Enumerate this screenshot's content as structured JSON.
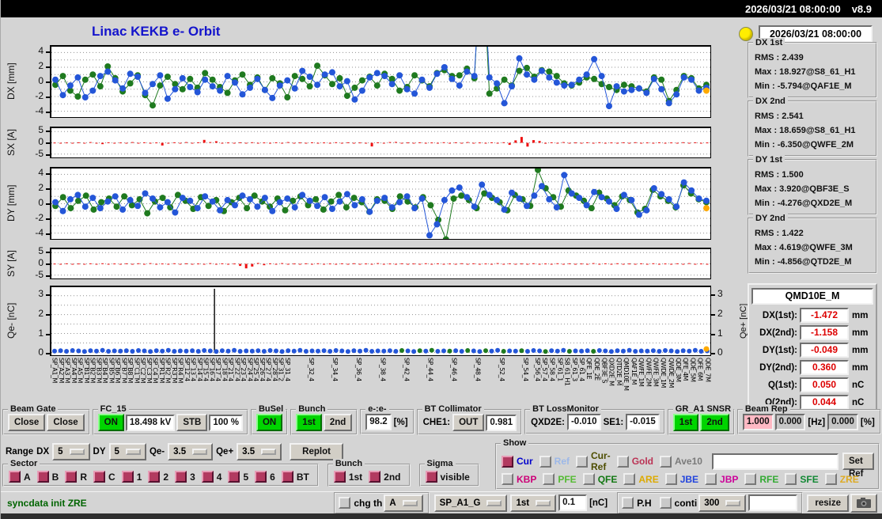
{
  "topbar": {
    "clock": "2026/03/21 08:00:00",
    "version": "v8.9"
  },
  "title": "Linac KEKB e- Orbit",
  "status_clock": "2026/03/21 08:00:00",
  "colors": {
    "accent_blue": "#1414cc",
    "series_blue": "#2456d8",
    "series_green": "#1f7a1f",
    "bars_red": "#ee1111",
    "value_red": "#dd0000",
    "green_button": "#00d400",
    "pink_field": "#ffb9c4",
    "checkbox_maroon": "#b23a60",
    "led_yellow": "#ffee00"
  },
  "stats": [
    {
      "title": "DX 1st",
      "lines": [
        "RMS :  2.439",
        "Max :  18.927@S8_61_H1",
        "Min :  -5.794@QAF1E_M"
      ]
    },
    {
      "title": "DX 2nd",
      "lines": [
        "RMS :  2.541",
        "Max :  18.659@S8_61_H1",
        "Min :  -6.350@QWFE_2M"
      ]
    },
    {
      "title": "DY 1st",
      "lines": [
        "RMS :  1.500",
        "Max :  3.920@QBF3E_S",
        "Min :  -4.276@QXD2E_M"
      ]
    },
    {
      "title": "DY 2nd",
      "lines": [
        "RMS :  1.422",
        "Max :  4.619@QWFE_3M",
        "Min :  -4.856@QTD2E_M"
      ]
    }
  ],
  "monitor": {
    "name": "QMD10E_M",
    "rows": [
      {
        "label": "DX(1st):",
        "value": "-1.472",
        "unit": "mm"
      },
      {
        "label": "DX(2nd):",
        "value": "-1.158",
        "unit": "mm"
      },
      {
        "label": "DY(1st):",
        "value": "-0.049",
        "unit": "mm"
      },
      {
        "label": "DY(2nd):",
        "value": "0.360",
        "unit": "mm"
      },
      {
        "label": "Q(1st):",
        "value": "0.050",
        "unit": "nC"
      },
      {
        "label": "Q(2nd):",
        "value": "0.044",
        "unit": "nC"
      }
    ]
  },
  "beam_gate": {
    "title": "Beam Gate",
    "btn1": "Close",
    "btn2": "Close"
  },
  "fc15": {
    "title": "FC_15",
    "on": "ON",
    "kv": "18.498 kV",
    "stb": "STB",
    "pct": "100 %"
  },
  "busel": {
    "title": "BuSel",
    "on": "ON"
  },
  "bunch": {
    "title": "Bunch",
    "b1": "1st",
    "b2": "2nd"
  },
  "ee": {
    "title": "e-:e-",
    "value": "98.2",
    "unit": "[%]"
  },
  "bt_collimator": {
    "title": "BT Collimator",
    "label": "CHE1:",
    "state": "OUT",
    "value": "0.981"
  },
  "bt_loss": {
    "title": "BT LossMonitor",
    "l1": "QXD2E:",
    "v1": "-0.010",
    "l2": "SE1:",
    "v2": "-0.015"
  },
  "gr_snsr": {
    "title": "GR_A1 SNSR",
    "b1": "1st",
    "b2": "2nd"
  },
  "beam_rep": {
    "title": "Beam Rep",
    "v1": "1.000",
    "v2": "0.000",
    "u1": "[Hz]",
    "v3": "0.000",
    "u2": "[%]"
  },
  "range": {
    "label": "Range",
    "l1": "DX",
    "v1": "5",
    "l2": "DY",
    "v2": "5",
    "l3": "Qe-",
    "v3": "3.5",
    "l4": "Qe+",
    "v4": "3.5",
    "replot": "Replot"
  },
  "sector": {
    "title": "Sector",
    "items": [
      "A",
      "B",
      "R",
      "C",
      "1",
      "2",
      "3",
      "4",
      "5",
      "6",
      "BT"
    ]
  },
  "bunch2": {
    "title": "Bunch",
    "items": [
      "1st",
      "2nd"
    ]
  },
  "sigma": {
    "title": "Sigma",
    "items": [
      "visible"
    ]
  },
  "show": {
    "title": "Show",
    "row1": [
      {
        "label": "Cur",
        "color": "#0000cc",
        "checked": true
      },
      {
        "label": "Ref",
        "color": "#9db8e8",
        "checked": false
      },
      {
        "label": "Cur-Ref",
        "color": "#4d4d00",
        "checked": false
      },
      {
        "label": "Gold",
        "color": "#bb3355",
        "checked": false
      },
      {
        "label": "Ave10",
        "color": "#7a7a7a",
        "checked": false
      }
    ],
    "set_ref": "Set Ref",
    "row2": [
      {
        "label": "KBP",
        "color": "#cc0077",
        "checked": false
      },
      {
        "label": "PFE",
        "color": "#55bb33",
        "checked": false
      },
      {
        "label": "QFE",
        "color": "#117711",
        "checked": false
      },
      {
        "label": "ARE",
        "color": "#ddaa00",
        "checked": false
      },
      {
        "label": "JBE",
        "color": "#2244dd",
        "checked": false
      },
      {
        "label": "JBP",
        "color": "#cc0099",
        "checked": false
      },
      {
        "label": "RFE",
        "color": "#33aa33",
        "checked": false
      },
      {
        "label": "SFE",
        "color": "#118833",
        "checked": false
      },
      {
        "label": "ZRE",
        "color": "#ddaa22",
        "checked": false
      }
    ]
  },
  "statusbar": {
    "message": "syncdata init ZRE",
    "chg_th": "chg th",
    "dd1": "A",
    "dd2": "SP_A1_G",
    "dd3": "1st",
    "input": "0.1",
    "unit": "[nC]",
    "ph": "P.H",
    "conti": "conti",
    "dd4": "300",
    "resize": "resize"
  },
  "chart_data": {
    "dx": {
      "type": "scatter",
      "label": "DX [mm]",
      "ylim": [
        -4.8,
        4.8
      ],
      "ticks": [
        4,
        2,
        0,
        -2,
        -4
      ],
      "grid": [
        -4,
        -3,
        -2,
        -1,
        0,
        1,
        2,
        3,
        4
      ],
      "end": -1.2,
      "blue": [
        0.3,
        -1.8,
        -0.5,
        0.6,
        -2.1,
        -1.2,
        0.8,
        1.4,
        0.2,
        -0.9,
        1.1,
        0.7,
        -1.5,
        -0.3,
        0.9,
        -2.3,
        -1.0,
        0.5,
        -0.7,
        -1.4,
        0.3,
        -0.6,
        -1.2,
        0.8,
        -0.1,
        -1.7,
        -0.8,
        0.4,
        -1.1,
        -2.2,
        -0.5,
        0.2,
        -0.9,
        1.5,
        0.7,
        -0.4,
        1.0,
        1.3,
        -0.6,
        0.1,
        -2.4,
        -1.2,
        0.6,
        1.2,
        0.8,
        -0.3,
        0.9,
        -1.0,
        -1.6,
        0.3,
        -0.8,
        1.1,
        2.0,
        0.4,
        -0.5,
        1.4,
        0.8,
        18.9,
        0.6,
        -0.2,
        -2.9,
        -0.6,
        3.2,
        1.0,
        0.3,
        1.5,
        0.6,
        -0.1,
        -0.5,
        -0.4,
        0.3,
        1.0,
        3.1,
        0.8,
        -3.3,
        -0.6,
        -1.3,
        -1.1,
        -0.9,
        -1.5,
        0.4,
        -1.0,
        -2.9,
        -1.7,
        0.6,
        0.3,
        -1.2,
        -0.8
      ],
      "green": [
        -0.4,
        0.8,
        -1.2,
        -2.0,
        0.3,
        1.0,
        -0.6,
        2.1,
        0.5,
        -1.3,
        -0.2,
        0.9,
        -1.8,
        -3.2,
        -0.5,
        0.7,
        -0.3,
        -1.0,
        0.4,
        -0.8,
        1.2,
        0.3,
        -0.7,
        -1.5,
        0.2,
        1.0,
        -0.4,
        0.6,
        -1.1,
        0.5,
        -0.2,
        -2.1,
        0.8,
        0.4,
        -0.6,
        2.2,
        0.9,
        -0.3,
        0.5,
        -1.9,
        -0.8,
        0.2,
        0.7,
        -0.5,
        1.1,
        0.4,
        -1.2,
        -0.7,
        0.9,
        0.2,
        -0.6,
        1.2,
        1.6,
        0.8,
        0.9,
        1.8,
        0.5,
        18.66,
        -1.6,
        -0.9,
        0.3,
        -0.5,
        1.5,
        1.9,
        0.7,
        1.6,
        1.4,
        0.8,
        -0.2,
        -0.5,
        -0.1,
        0.6,
        0.4,
        -0.3,
        -0.7,
        -1.1,
        -0.4,
        -0.6,
        -0.9,
        -1.3,
        0.6,
        0.3,
        -2.6,
        -1.1,
        0.8,
        0.5,
        -0.9,
        -0.4
      ]
    },
    "sx": {
      "type": "bars",
      "label": "SX [A]",
      "ylim": [
        -6.5,
        6.5
      ],
      "ticks": [
        5,
        0,
        -5
      ],
      "grid": [
        -5,
        0,
        5
      ],
      "bars": [
        0.1,
        -0.2,
        0.15,
        -0.3,
        0.2,
        -0.15,
        0.3,
        -0.2,
        -0.6,
        0.2,
        -0.25,
        0.15,
        -0.2,
        0.3,
        -0.15,
        0.2,
        -0.3,
        0.15,
        -1.2,
        -0.3,
        0.2,
        -0.2,
        0.3,
        -0.15,
        0.2,
        1.3,
        0.3,
        0.7,
        -0.2,
        0.15,
        -0.3,
        0.2,
        -0.15,
        0.25,
        -0.2,
        0.15,
        -0.25,
        0.2,
        -0.15,
        0.3,
        -0.2,
        0.15,
        -0.3,
        0.2,
        -0.25,
        0.15,
        -0.2,
        0.25,
        -0.15,
        0.2,
        -0.3,
        0.15,
        -0.2,
        -1.6,
        0.2,
        -0.15,
        0.3,
        0.4,
        -0.2,
        0.15,
        -0.25,
        0.2,
        -0.3,
        0.15,
        -0.2,
        0.25,
        -0.15,
        0.2,
        -0.25,
        0.3,
        -0.2,
        0.15,
        -0.3,
        0.2,
        -0.15,
        0.25,
        -0.9,
        1.1,
        2.6,
        -1.7,
        1.2,
        0.8,
        -0.4,
        0.2,
        -0.15,
        0.3,
        -0.2,
        0.15,
        -0.25,
        0.2,
        -0.15,
        0.25,
        -0.2,
        0.15,
        -0.3,
        0.2,
        -0.15,
        0.25,
        -0.2,
        0.15,
        -0.25,
        0.2,
        -0.3,
        0.15,
        -0.2,
        0.25,
        -0.15,
        0.2,
        -0.25,
        0.15
      ]
    },
    "dy": {
      "type": "scatter",
      "label": "DY [mm]",
      "ylim": [
        -4.8,
        4.8
      ],
      "ticks": [
        4,
        2,
        0,
        -2,
        -4
      ],
      "grid": [
        -4,
        -3,
        -2,
        -1,
        0,
        1,
        2,
        3,
        4
      ],
      "end": -0.6,
      "blue": [
        0.2,
        -1.0,
        0.6,
        1.2,
        -0.4,
        0.8,
        -0.6,
        0.3,
        1.0,
        -0.8,
        0.5,
        -0.3,
        1.4,
        0.7,
        -0.5,
        0.2,
        -1.2,
        0.8,
        0.4,
        -0.6,
        1.0,
        0.3,
        -0.9,
        0.5,
        -0.2,
        1.1,
        0.6,
        -0.4,
        0.8,
        -1.0,
        0.2,
        0.7,
        -0.5,
        1.2,
        0.4,
        -0.3,
        0.9,
        -0.7,
        0.3,
        1.3,
        -0.2,
        0.6,
        -1.1,
        0.4,
        0.8,
        -0.5,
        0.2,
        1.0,
        -0.6,
        0.7,
        -4.3,
        -2.8,
        0.5,
        1.8,
        2.2,
        0.9,
        -0.4,
        2.6,
        1.2,
        0.5,
        -0.8,
        1.5,
        0.7,
        -0.3,
        1.1,
        2.4,
        0.6,
        -0.5,
        3.9,
        1.4,
        0.8,
        -0.2,
        1.6,
        0.9,
        0.3,
        -0.7,
        1.2,
        0.5,
        -1.5,
        -0.9,
        2.1,
        1.3,
        0.6,
        -0.4,
        2.9,
        1.8,
        0.7,
        0.4
      ],
      "green": [
        -0.3,
        0.9,
        -0.6,
        0.4,
        1.1,
        -0.8,
        0.2,
        0.7,
        -0.4,
        1.0,
        -0.2,
        0.6,
        -1.3,
        0.3,
        0.8,
        -0.5,
        1.2,
        0.4,
        -0.7,
        0.9,
        -0.3,
        0.5,
        -1.0,
        0.2,
        0.8,
        -0.6,
        1.1,
        0.3,
        -0.4,
        0.7,
        -0.9,
        0.4,
        1.0,
        -0.2,
        0.6,
        -0.8,
        0.3,
        1.2,
        -0.5,
        0.8,
        0.2,
        -1.1,
        0.6,
        0.4,
        -0.7,
        1.0,
        0.3,
        -0.5,
        0.9,
        -0.2,
        -2.2,
        -4.86,
        0.7,
        1.1,
        0.5,
        -0.6,
        1.4,
        0.8,
        0.2,
        -0.9,
        1.2,
        0.6,
        -0.3,
        4.62,
        2.1,
        0.9,
        -0.4,
        1.8,
        1.1,
        0.4,
        -0.6,
        1.5,
        0.7,
        -0.2,
        1.0,
        0.5,
        -1.2,
        -0.7,
        1.9,
        1.0,
        0.4,
        -0.5,
        2.5,
        1.4,
        0.6,
        0.2
      ]
    },
    "sy": {
      "type": "bars",
      "label": "SY [A]",
      "ylim": [
        -6.5,
        6.5
      ],
      "ticks": [
        5,
        0,
        -5
      ],
      "grid": [
        -5,
        0,
        5
      ],
      "bars": [
        0.1,
        -0.15,
        0.2,
        -0.2,
        0.15,
        -0.25,
        0.2,
        -0.15,
        0.25,
        -0.2,
        0.15,
        -0.3,
        0.2,
        -0.15,
        0.25,
        -0.2,
        0.3,
        -0.25,
        0.15,
        -0.2,
        0.25,
        -0.15,
        0.2,
        -0.3,
        0.15,
        -0.2,
        0.3,
        -0.15,
        0.2,
        -0.25,
        0.15,
        -0.9,
        -2.0,
        -1.2,
        0.4,
        -0.6,
        0.2,
        -0.15,
        0.3,
        -0.2,
        0.15,
        -0.25,
        0.2,
        -0.15,
        0.25,
        -0.2,
        0.15,
        -0.3,
        0.2,
        -0.15,
        0.25,
        -0.2,
        0.15,
        -0.25,
        0.3,
        -0.2,
        0.15,
        -0.3,
        0.2,
        -0.25,
        0.15,
        -0.2,
        0.25,
        -0.15,
        0.2,
        -0.3,
        0.15,
        -0.2,
        0.25,
        -0.15,
        0.2,
        -0.25,
        0.15,
        -0.2,
        0.3,
        -0.15,
        0.2,
        -0.25,
        0.15,
        -0.2,
        0.25,
        -0.3,
        0.15,
        -0.2,
        0.25,
        -0.15,
        0.2,
        -0.25,
        0.15,
        -0.2,
        0.3,
        -0.25,
        0.2,
        -0.15,
        0.25,
        -0.2,
        0.15,
        -0.3,
        0.2,
        -0.15,
        0.25,
        -0.2,
        0.15,
        -0.25,
        0.2,
        -0.15,
        0.3,
        -0.2,
        0.15,
        -0.25
      ]
    },
    "qe": {
      "type": "dots",
      "label": "Qe- [nC]",
      "right_label": "Qe+ [nC]",
      "ylim": [
        -0.15,
        3.45
      ],
      "ticks": [
        3,
        2,
        1,
        0
      ],
      "grid": [
        0,
        0.5,
        1,
        1.5,
        2,
        2.5,
        3
      ],
      "spike_x": 0.245,
      "end": 0.18,
      "green_idx": [
        58,
        61,
        63,
        66,
        69,
        72,
        75,
        78,
        82,
        86,
        90
      ],
      "values": [
        0.07,
        0.09,
        0.06,
        0.1,
        0.08,
        0.05,
        0.09,
        0.07,
        0.11,
        0.06,
        0.08,
        0.07,
        0.09,
        0.06,
        0.1,
        0.08,
        0.05,
        0.09,
        0.07,
        0.11,
        0.06,
        0.08,
        0.07,
        0.09,
        0.06,
        0.1,
        0.08,
        0.05,
        0.09,
        0.07,
        0.11,
        0.06,
        0.08,
        0.07,
        0.09,
        0.06,
        0.1,
        0.08,
        0.05,
        0.09,
        0.07,
        0.11,
        0.06,
        0.08,
        0.07,
        0.09,
        0.06,
        0.1,
        0.08,
        0.05,
        0.09,
        0.07,
        0.11,
        0.06,
        0.08,
        0.07,
        0.09,
        0.06,
        0.1,
        0.08,
        0.05,
        0.09,
        0.07,
        0.11,
        0.06,
        0.08,
        0.07,
        0.09,
        0.06,
        0.1,
        0.08,
        0.05,
        0.09,
        0.07,
        0.11,
        0.06,
        0.08,
        0.07,
        0.09,
        0.06,
        0.1,
        0.08,
        0.05,
        0.09,
        0.07,
        0.11,
        0.06,
        0.08,
        0.07,
        0.09,
        0.06,
        0.1,
        0.08,
        0.05,
        0.09,
        0.07,
        0.11,
        0.06,
        0.08,
        0.07,
        0.09,
        0.06,
        0.1,
        0.08,
        0.05,
        0.09,
        0.07,
        0.11,
        0.06,
        0.08
      ]
    },
    "xlabels": [
      [
        0.002,
        "SP_A1_M"
      ],
      [
        0.012,
        "SP_A2_M"
      ],
      [
        0.021,
        "SP_A3_M"
      ],
      [
        0.031,
        "SP_A4_M"
      ],
      [
        0.04,
        "SP_A5_M"
      ],
      [
        0.05,
        "SP_B1_M"
      ],
      [
        0.059,
        "SP_B2_M"
      ],
      [
        0.069,
        "SP_B3_M"
      ],
      [
        0.078,
        "SP_B4_M"
      ],
      [
        0.088,
        "SP_B5_M"
      ],
      [
        0.097,
        "SP_B6_M"
      ],
      [
        0.107,
        "SP_B7_M"
      ],
      [
        0.116,
        "SP_B8_M"
      ],
      [
        0.126,
        "SP_C1_M"
      ],
      [
        0.135,
        "SP_C2_M"
      ],
      [
        0.145,
        "SP_C3_M"
      ],
      [
        0.154,
        "SP_C4_M"
      ],
      [
        0.164,
        "SP_R1_M"
      ],
      [
        0.173,
        "SP_R2_M"
      ],
      [
        0.183,
        "SP_R3_M"
      ],
      [
        0.192,
        "SP_R4_M"
      ],
      [
        0.202,
        "SP_12_4"
      ],
      [
        0.211,
        "SP_13_4"
      ],
      [
        0.221,
        "SP_14_4"
      ],
      [
        0.23,
        "SP_15_4"
      ],
      [
        0.24,
        "SP_16_4"
      ],
      [
        0.249,
        "SP_17_4"
      ],
      [
        0.259,
        "SP_18_4"
      ],
      [
        0.268,
        "SP_21_4"
      ],
      [
        0.278,
        "SP_22_4"
      ],
      [
        0.287,
        "SP_23_4"
      ],
      [
        0.297,
        "SP_24_4"
      ],
      [
        0.306,
        "SP_25_4"
      ],
      [
        0.316,
        "SP_26_4"
      ],
      [
        0.325,
        "SP_27_4"
      ],
      [
        0.335,
        "SP_28_4"
      ],
      [
        0.344,
        "SP_31_2"
      ],
      [
        0.354,
        "SP_31_4"
      ],
      [
        0.39,
        "SP_32_4"
      ],
      [
        0.426,
        "SP_34_4"
      ],
      [
        0.462,
        "SP_36_4"
      ],
      [
        0.498,
        "SP_38_4"
      ],
      [
        0.534,
        "SP_42_4"
      ],
      [
        0.57,
        "SP_44_4"
      ],
      [
        0.606,
        "SP_46_4"
      ],
      [
        0.642,
        "SP_48_4"
      ],
      [
        0.678,
        "SP_52_4"
      ],
      [
        0.714,
        "SP_54_4"
      ],
      [
        0.732,
        "SP_56_4"
      ],
      [
        0.743,
        "SP_57_4"
      ],
      [
        0.754,
        "SP_58_4"
      ],
      [
        0.766,
        "SP_61_1"
      ],
      [
        0.777,
        "S8_61_H1"
      ],
      [
        0.788,
        "SP_61_3"
      ],
      [
        0.799,
        "SP_61_4"
      ],
      [
        0.81,
        "QFE_1E"
      ],
      [
        0.822,
        "QDE_2E"
      ],
      [
        0.833,
        "QBF3E_S"
      ],
      [
        0.844,
        "QXD2E_M"
      ],
      [
        0.855,
        "QTD2E_M"
      ],
      [
        0.866,
        "QMD10E_M"
      ],
      [
        0.878,
        "QAF1E_M"
      ],
      [
        0.889,
        "QWFE_1M"
      ],
      [
        0.9,
        "QWFE_2M"
      ],
      [
        0.911,
        "QWFE_3M"
      ],
      [
        0.922,
        "QWDE_1M"
      ],
      [
        0.934,
        "QWDE_2M"
      ],
      [
        0.945,
        "QDE_3M"
      ],
      [
        0.956,
        "QFE_4M"
      ],
      [
        0.967,
        "QDE_5M"
      ],
      [
        0.978,
        "QFE_6M"
      ],
      [
        0.99,
        "QDE_7M"
      ]
    ]
  }
}
